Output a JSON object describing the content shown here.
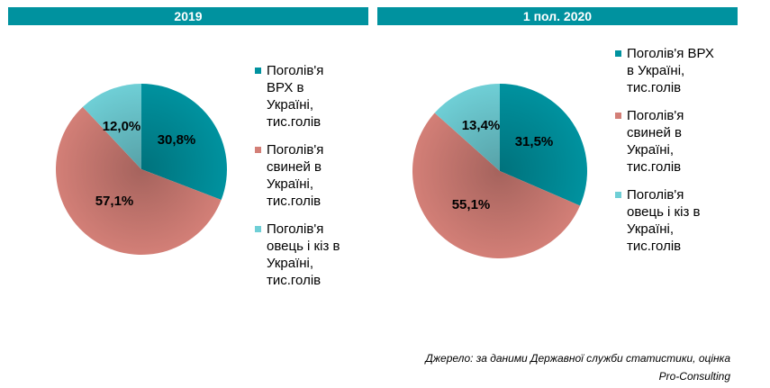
{
  "colors": {
    "header": "#00929f",
    "cattle": "#00929f",
    "pigs": "#d37f77",
    "sheep": "#6fcfd6"
  },
  "source": {
    "line1": "Джерело: за даними Державної служби статистики, оцінка",
    "line2": "Pro-Consulting"
  },
  "chart_data": [
    {
      "type": "pie",
      "title": "2019",
      "categories": [
        "Поголів'я ВРХ в Україні, тис.голів",
        "Поголів'я свиней в Україні, тис.голів",
        "Поголів'я овець і кіз в Україні, тис.голів"
      ],
      "values": [
        30.8,
        57.1,
        12.0
      ],
      "labels": [
        "30,8%",
        "57,1%",
        "12,0%"
      ],
      "legend": [
        [
          "Поголів'я",
          "ВРХ в",
          "Україні,",
          "тис.голів"
        ],
        [
          "Поголів'я",
          "свиней в",
          "Україні,",
          "тис.голів"
        ],
        [
          "Поголів'я",
          "овець і кіз в",
          "Україні,",
          "тис.голів"
        ]
      ],
      "legend_position": "right"
    },
    {
      "type": "pie",
      "title": "1 пол. 2020",
      "categories": [
        "Поголів'я ВРХ в Україні, тис.голів",
        "Поголів'я свиней в Україні, тис.голів",
        "Поголів'я овець і кіз в Україні, тис.голів"
      ],
      "values": [
        31.5,
        55.1,
        13.4
      ],
      "labels": [
        "31,5%",
        "55,1%",
        "13,4%"
      ],
      "legend": [
        [
          "Поголів'я ВРХ",
          "в Україні,",
          "тис.голів"
        ],
        [
          "Поголів'я",
          "свиней в",
          "Україні,",
          "тис.голів"
        ],
        [
          "Поголів'я",
          "овець і кіз в",
          "Україні,",
          "тис.голів"
        ]
      ],
      "legend_position": "right"
    }
  ]
}
